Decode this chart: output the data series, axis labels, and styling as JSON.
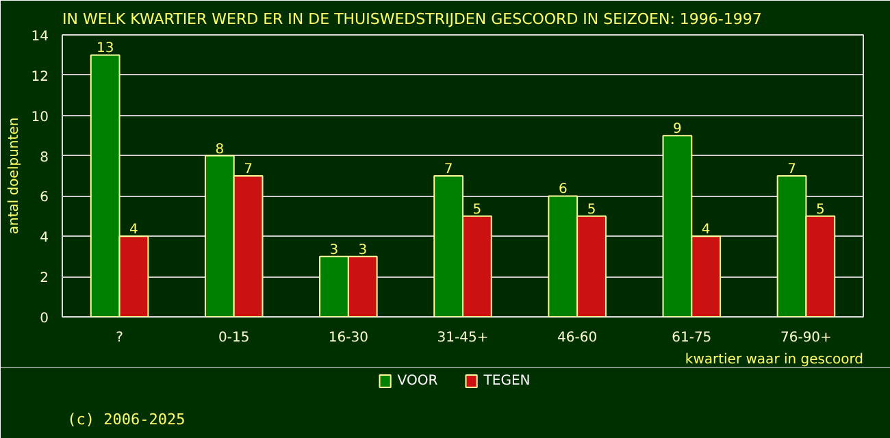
{
  "chart_data": {
    "type": "bar",
    "title": "IN WELK KWARTIER WERD ER IN DE THUISWEDSTRIJDEN GESCOORD IN SEIZOEN: 1996-1997",
    "xlabel": "kwartier waar in gescoord",
    "ylabel": "antal doelpunten",
    "categories": [
      "?",
      "0-15",
      "16-30",
      "31-45+",
      "46-60",
      "61-75",
      "76-90+"
    ],
    "series": [
      {
        "name": "VOOR",
        "color": "#008000",
        "values": [
          13,
          8,
          3,
          7,
          6,
          9,
          7
        ]
      },
      {
        "name": "TEGEN",
        "color": "#cc1111",
        "values": [
          4,
          7,
          3,
          5,
          5,
          4,
          5
        ]
      }
    ],
    "ylim": [
      0,
      14
    ],
    "yticks": [
      0,
      2,
      4,
      6,
      8,
      10,
      12,
      14
    ],
    "grid": "y",
    "legend": "bottom",
    "data_labels": true,
    "annotations": [
      "(c) 2006-2025"
    ]
  }
}
